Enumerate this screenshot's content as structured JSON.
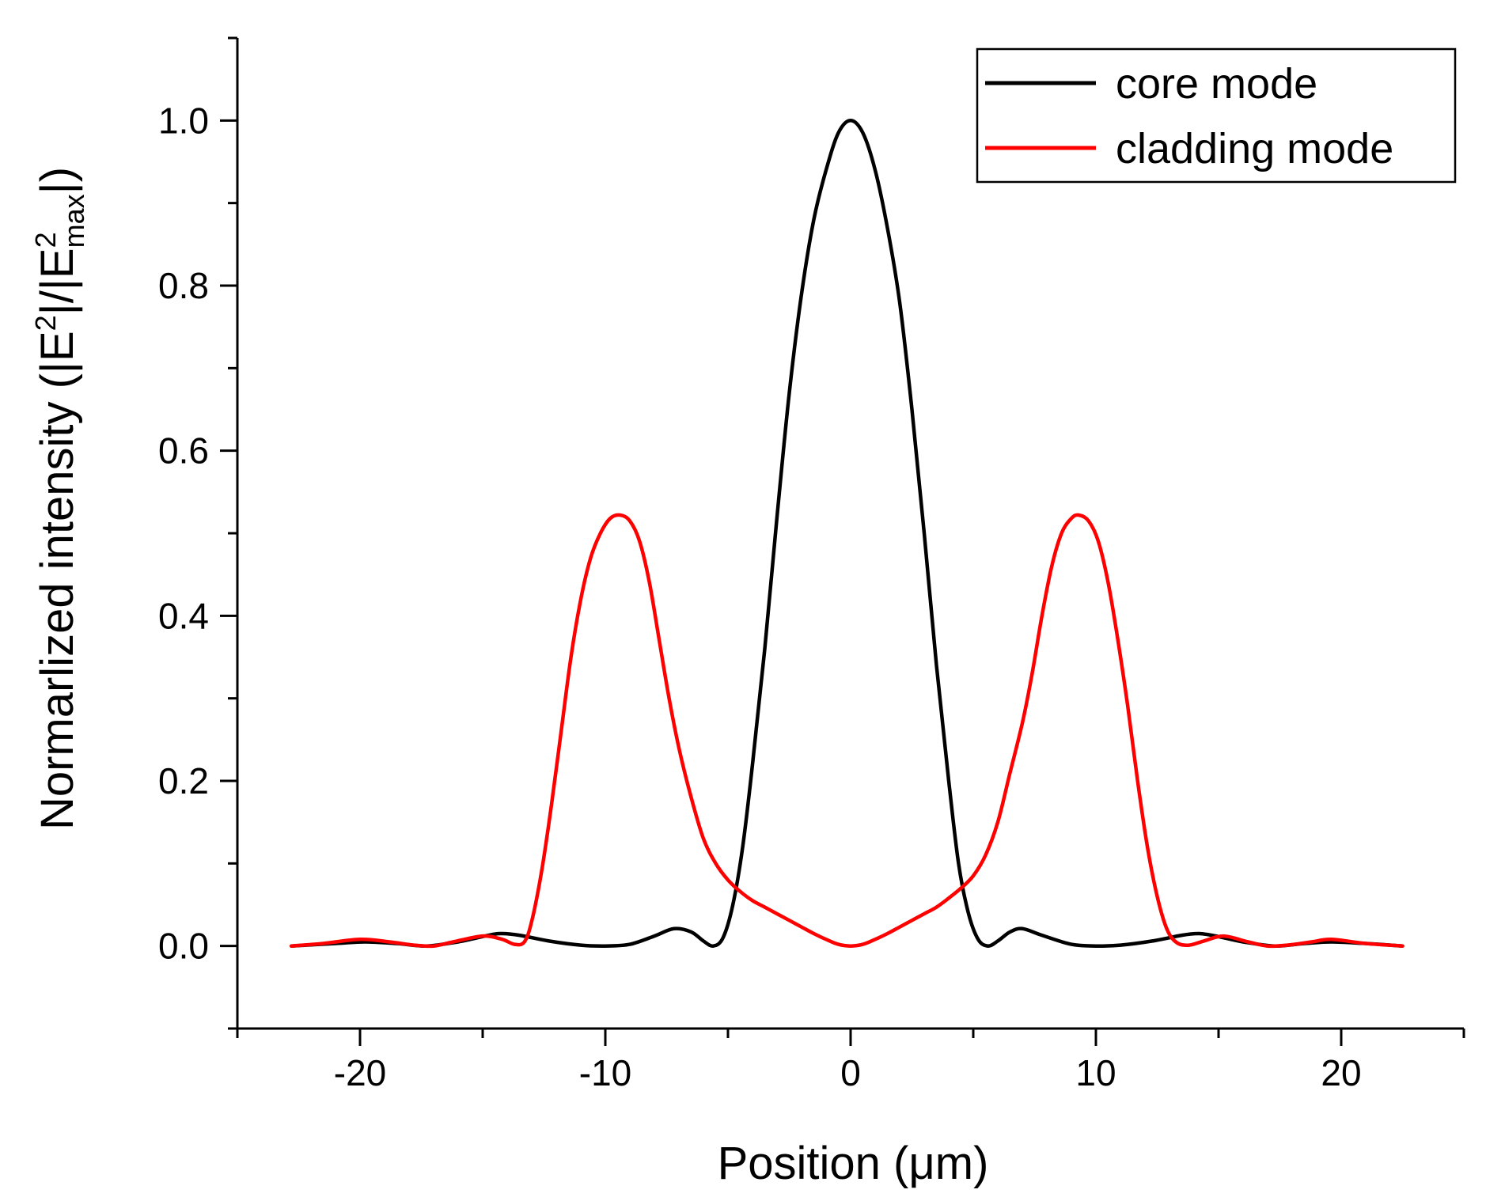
{
  "chart_data": {
    "type": "line",
    "title": "",
    "xlabel": "Position (μm)",
    "ylabel": {
      "main": "Normarlized intensity (|E",
      "sup1": "2",
      "mid": "|/|E",
      "sup2": "2",
      "sub": "max",
      "end": "|)"
    },
    "xlim": [
      -25,
      25
    ],
    "ylim": [
      -0.1,
      1.1
    ],
    "xticks": [
      -20,
      -10,
      0,
      10,
      20
    ],
    "xtick_labels": [
      "-20",
      "-10",
      "0",
      "10",
      "20"
    ],
    "yticks": [
      0.0,
      0.2,
      0.4,
      0.6,
      0.8,
      1.0
    ],
    "ytick_labels": [
      "0.0",
      "0.2",
      "0.4",
      "0.6",
      "0.8",
      "1.0"
    ],
    "grid": false,
    "legend_position": "top-right",
    "series": [
      {
        "name": "core mode",
        "color": "#000000",
        "points": [
          [
            -22.8,
            0.0
          ],
          [
            -21.0,
            0.003
          ],
          [
            -19.8,
            0.005
          ],
          [
            -18.5,
            0.003
          ],
          [
            -17.3,
            0.0
          ],
          [
            -16.0,
            0.005
          ],
          [
            -14.9,
            0.012
          ],
          [
            -14.3,
            0.015
          ],
          [
            -13.5,
            0.013
          ],
          [
            -12.3,
            0.006
          ],
          [
            -11.0,
            0.001
          ],
          [
            -10.0,
            0.0
          ],
          [
            -9.0,
            0.002
          ],
          [
            -8.0,
            0.012
          ],
          [
            -7.2,
            0.021
          ],
          [
            -6.5,
            0.017
          ],
          [
            -6.0,
            0.006
          ],
          [
            -5.6,
            0.0
          ],
          [
            -5.2,
            0.01
          ],
          [
            -4.8,
            0.05
          ],
          [
            -4.4,
            0.12
          ],
          [
            -4.0,
            0.22
          ],
          [
            -3.5,
            0.36
          ],
          [
            -3.0,
            0.52
          ],
          [
            -2.5,
            0.67
          ],
          [
            -2.0,
            0.79
          ],
          [
            -1.5,
            0.88
          ],
          [
            -1.0,
            0.94
          ],
          [
            -0.5,
            0.985
          ],
          [
            0.0,
            1.0
          ],
          [
            0.5,
            0.985
          ],
          [
            1.0,
            0.94
          ],
          [
            1.5,
            0.87
          ],
          [
            2.0,
            0.78
          ],
          [
            2.5,
            0.65
          ],
          [
            3.0,
            0.5
          ],
          [
            3.5,
            0.34
          ],
          [
            4.0,
            0.2
          ],
          [
            4.4,
            0.1
          ],
          [
            4.8,
            0.04
          ],
          [
            5.2,
            0.008
          ],
          [
            5.6,
            0.0
          ],
          [
            6.0,
            0.006
          ],
          [
            6.5,
            0.017
          ],
          [
            7.0,
            0.021
          ],
          [
            7.8,
            0.013
          ],
          [
            9.0,
            0.002
          ],
          [
            10.0,
            0.0
          ],
          [
            11.0,
            0.001
          ],
          [
            12.3,
            0.006
          ],
          [
            13.5,
            0.013
          ],
          [
            14.2,
            0.015
          ],
          [
            14.9,
            0.012
          ],
          [
            16.0,
            0.005
          ],
          [
            17.3,
            0.0
          ],
          [
            18.5,
            0.003
          ],
          [
            19.6,
            0.005
          ],
          [
            21.0,
            0.003
          ],
          [
            22.5,
            0.0
          ]
        ]
      },
      {
        "name": "cladding mode",
        "color": "#ff0000",
        "points": [
          [
            -22.8,
            0.0
          ],
          [
            -21.5,
            0.003
          ],
          [
            -20.0,
            0.008
          ],
          [
            -18.8,
            0.005
          ],
          [
            -17.8,
            0.001
          ],
          [
            -17.0,
            0.0
          ],
          [
            -16.2,
            0.005
          ],
          [
            -15.0,
            0.012
          ],
          [
            -14.2,
            0.008
          ],
          [
            -13.7,
            0.002
          ],
          [
            -13.3,
            0.005
          ],
          [
            -13.0,
            0.03
          ],
          [
            -12.6,
            0.09
          ],
          [
            -12.2,
            0.17
          ],
          [
            -11.8,
            0.26
          ],
          [
            -11.4,
            0.35
          ],
          [
            -11.0,
            0.42
          ],
          [
            -10.6,
            0.47
          ],
          [
            -10.2,
            0.5
          ],
          [
            -9.8,
            0.518
          ],
          [
            -9.4,
            0.522
          ],
          [
            -9.0,
            0.515
          ],
          [
            -8.6,
            0.49
          ],
          [
            -8.2,
            0.44
          ],
          [
            -7.8,
            0.37
          ],
          [
            -7.4,
            0.3
          ],
          [
            -7.0,
            0.24
          ],
          [
            -6.5,
            0.18
          ],
          [
            -6.0,
            0.13
          ],
          [
            -5.5,
            0.1
          ],
          [
            -5.0,
            0.08
          ],
          [
            -4.5,
            0.066
          ],
          [
            -4.0,
            0.055
          ],
          [
            -3.5,
            0.047
          ],
          [
            -3.0,
            0.039
          ],
          [
            -2.5,
            0.031
          ],
          [
            -2.0,
            0.023
          ],
          [
            -1.5,
            0.015
          ],
          [
            -1.0,
            0.008
          ],
          [
            -0.5,
            0.002
          ],
          [
            0.0,
            0.0
          ],
          [
            0.5,
            0.002
          ],
          [
            1.0,
            0.008
          ],
          [
            1.5,
            0.015
          ],
          [
            2.0,
            0.023
          ],
          [
            2.5,
            0.031
          ],
          [
            3.0,
            0.039
          ],
          [
            3.5,
            0.047
          ],
          [
            4.0,
            0.058
          ],
          [
            4.5,
            0.07
          ],
          [
            5.0,
            0.085
          ],
          [
            5.5,
            0.11
          ],
          [
            6.0,
            0.15
          ],
          [
            6.5,
            0.21
          ],
          [
            7.0,
            0.27
          ],
          [
            7.4,
            0.33
          ],
          [
            7.8,
            0.4
          ],
          [
            8.2,
            0.46
          ],
          [
            8.6,
            0.5
          ],
          [
            9.0,
            0.518
          ],
          [
            9.3,
            0.522
          ],
          [
            9.7,
            0.515
          ],
          [
            10.1,
            0.49
          ],
          [
            10.5,
            0.44
          ],
          [
            10.9,
            0.37
          ],
          [
            11.3,
            0.29
          ],
          [
            11.7,
            0.2
          ],
          [
            12.1,
            0.12
          ],
          [
            12.5,
            0.06
          ],
          [
            12.9,
            0.02
          ],
          [
            13.3,
            0.004
          ],
          [
            13.8,
            0.001
          ],
          [
            14.4,
            0.006
          ],
          [
            15.2,
            0.012
          ],
          [
            16.2,
            0.005
          ],
          [
            17.0,
            0.0
          ],
          [
            17.8,
            0.001
          ],
          [
            18.8,
            0.005
          ],
          [
            19.6,
            0.008
          ],
          [
            21.0,
            0.003
          ],
          [
            22.5,
            0.0
          ]
        ]
      }
    ]
  }
}
